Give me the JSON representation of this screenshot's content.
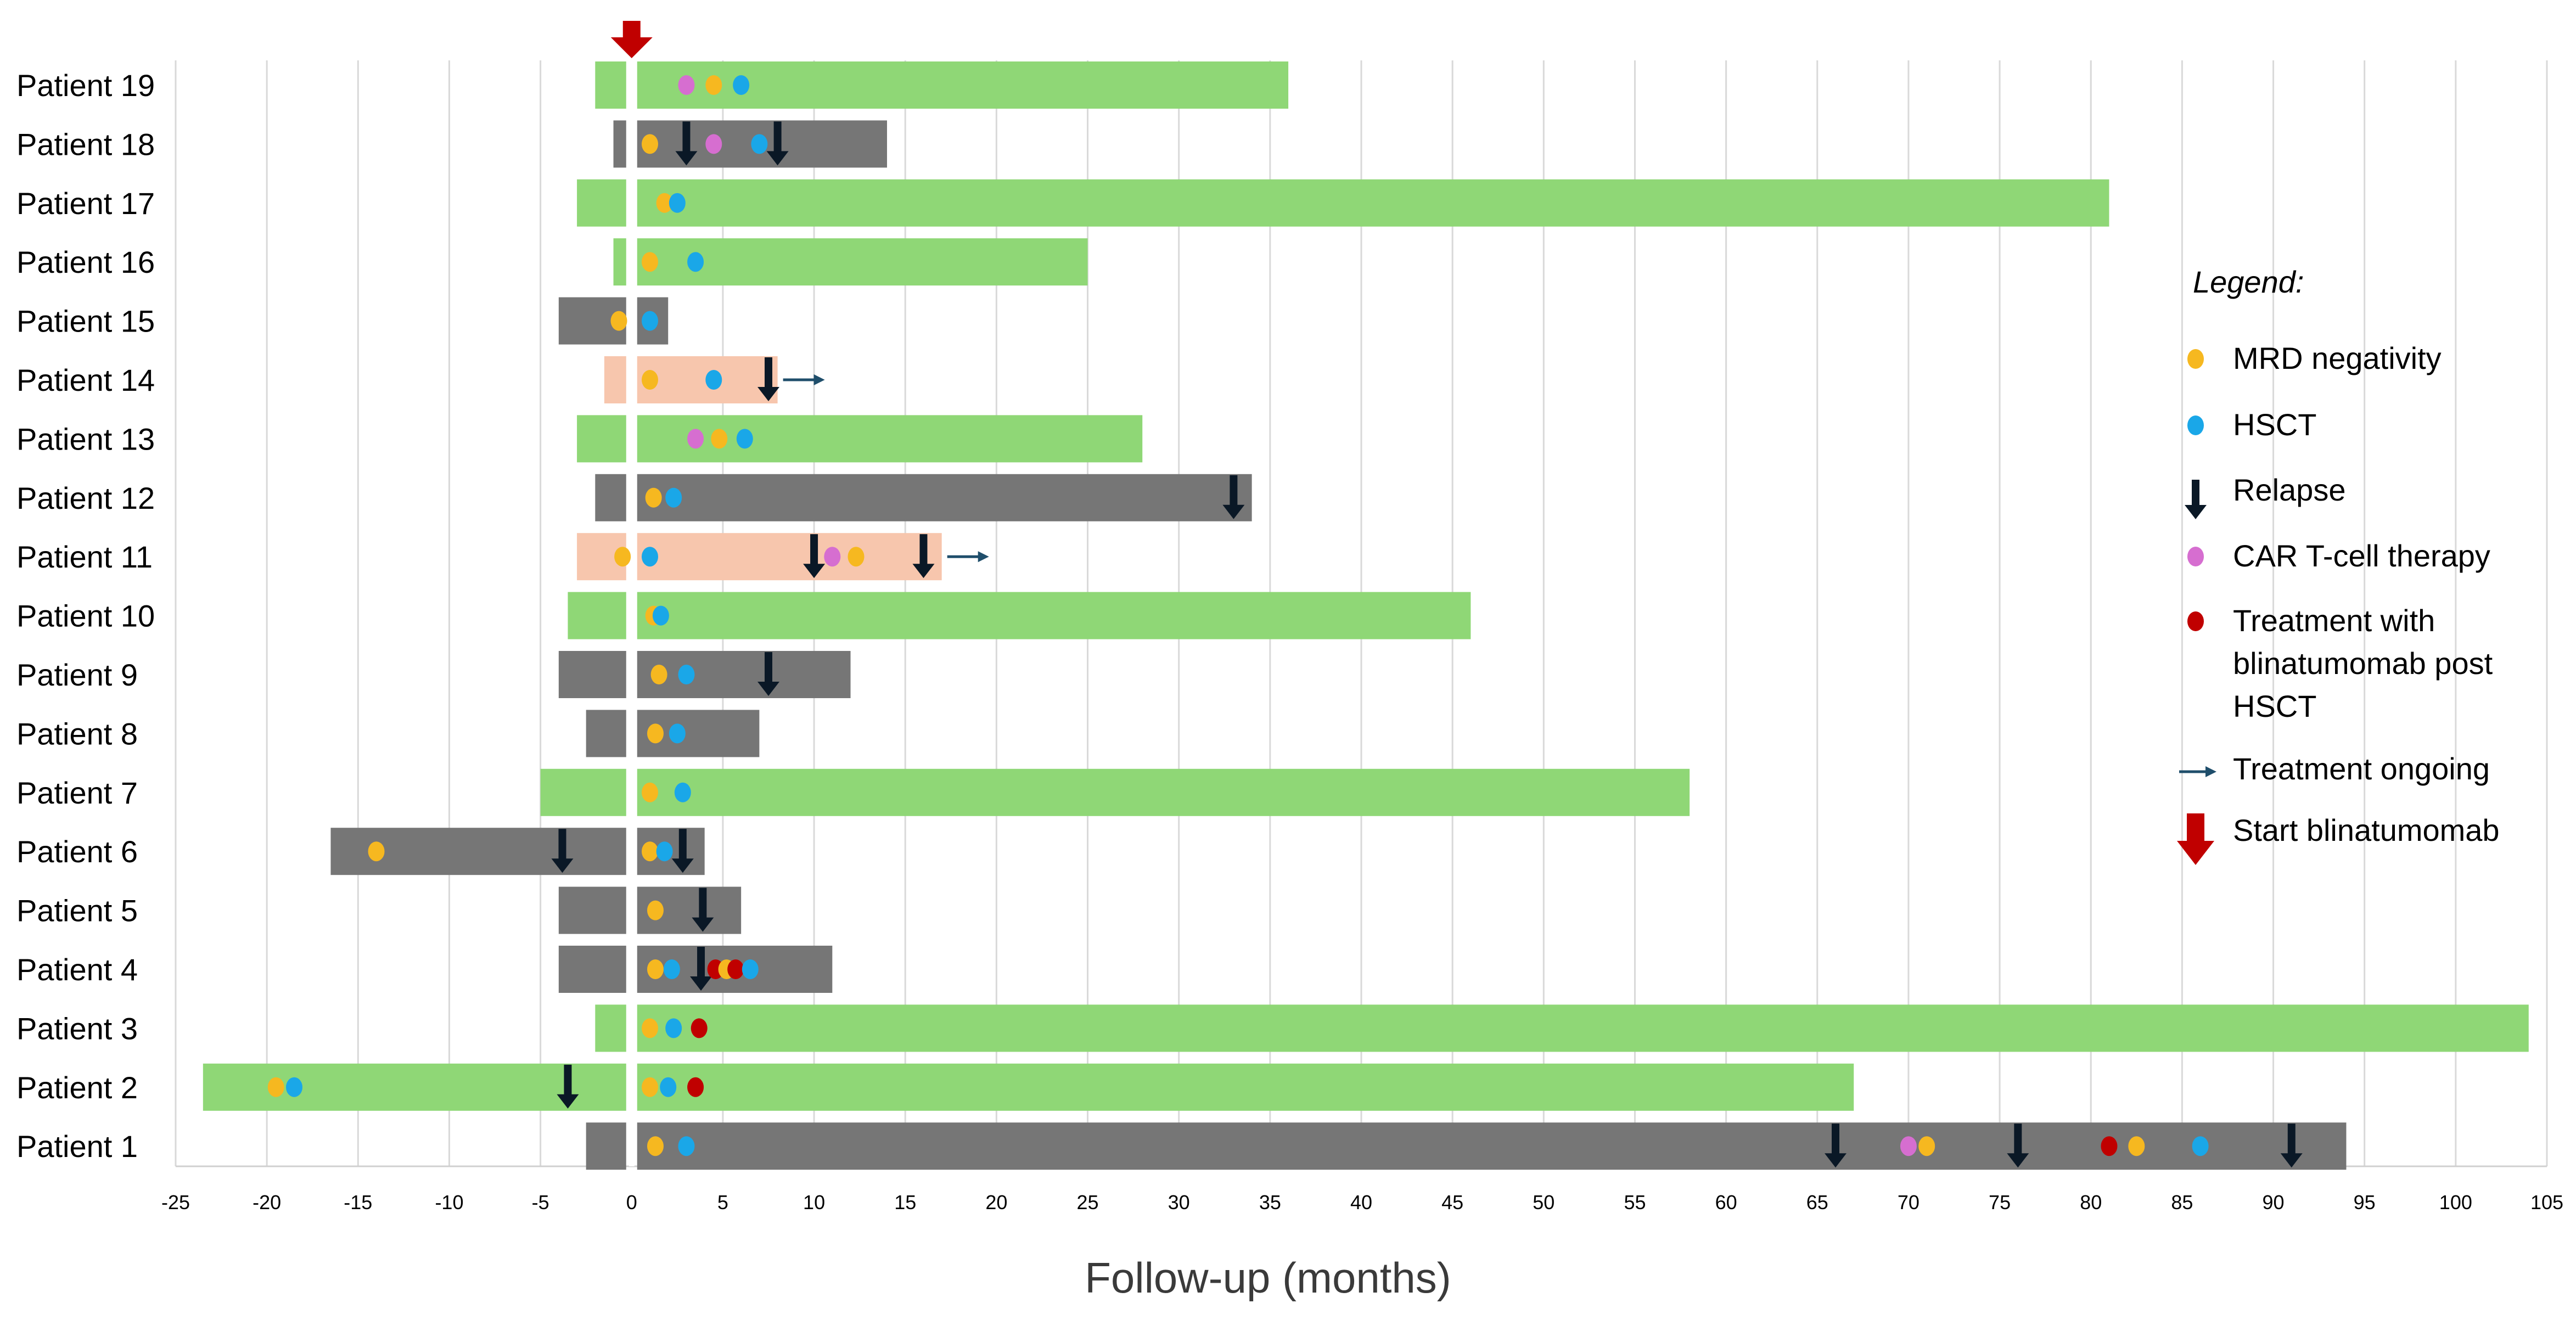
{
  "chart_data": {
    "type": "swimmer",
    "xlabel": "Follow-up (months)",
    "xlim": [
      -25,
      105
    ],
    "xticks": [
      -25,
      -20,
      -15,
      -10,
      -5,
      0,
      5,
      10,
      15,
      20,
      25,
      30,
      35,
      40,
      45,
      50,
      55,
      60,
      65,
      70,
      75,
      80,
      85,
      90,
      95,
      100,
      105
    ],
    "colors": {
      "green": "#8fd776",
      "gray": "#767676",
      "salmon": "#f7c6ad",
      "mrd": "#f6b820",
      "hsct": "#1aa7e8",
      "car": "#d66ed0",
      "blina": "#c00000",
      "relapse": "#0a1826",
      "ongoing": "#1f4e6b",
      "start": "#c00000",
      "grid": "#d9d9d9"
    },
    "patients": [
      {
        "label": "Patient 19",
        "color": "green",
        "start": -2,
        "end": 36,
        "events": [
          {
            "t": 3,
            "e": "car"
          },
          {
            "t": 4.5,
            "e": "mrd"
          },
          {
            "t": 6,
            "e": "hsct"
          }
        ]
      },
      {
        "label": "Patient 18",
        "color": "gray",
        "start": -1,
        "end": 14,
        "events": [
          {
            "t": 1,
            "e": "mrd"
          },
          {
            "t": 3,
            "e": "relapse"
          },
          {
            "t": 4.5,
            "e": "car"
          },
          {
            "t": 7,
            "e": "hsct"
          },
          {
            "t": 8,
            "e": "relapse"
          }
        ]
      },
      {
        "label": "Patient 17",
        "color": "green",
        "start": -3,
        "end": 81,
        "events": [
          {
            "t": 1.8,
            "e": "mrd"
          },
          {
            "t": 2.5,
            "e": "hsct"
          }
        ]
      },
      {
        "label": "Patient 16",
        "color": "green",
        "start": -1,
        "end": 25,
        "events": [
          {
            "t": 1,
            "e": "mrd"
          },
          {
            "t": 3.5,
            "e": "hsct"
          }
        ]
      },
      {
        "label": "Patient 15",
        "color": "gray",
        "start": -4,
        "end": 2,
        "events": [
          {
            "t": -0.7,
            "e": "mrd"
          },
          {
            "t": 1,
            "e": "hsct"
          }
        ]
      },
      {
        "label": "Patient 14",
        "color": "salmon",
        "start": -1.5,
        "end": 8,
        "ongoing": true,
        "events": [
          {
            "t": 1,
            "e": "mrd"
          },
          {
            "t": 4.5,
            "e": "hsct"
          },
          {
            "t": 7.5,
            "e": "relapse"
          }
        ]
      },
      {
        "label": "Patient 13",
        "color": "green",
        "start": -3,
        "end": 28,
        "events": [
          {
            "t": 3.5,
            "e": "car"
          },
          {
            "t": 4.8,
            "e": "mrd"
          },
          {
            "t": 6.2,
            "e": "hsct"
          }
        ]
      },
      {
        "label": "Patient 12",
        "color": "gray",
        "start": -2,
        "end": 34,
        "events": [
          {
            "t": 1.2,
            "e": "mrd"
          },
          {
            "t": 2.3,
            "e": "hsct"
          },
          {
            "t": 33,
            "e": "relapse"
          }
        ]
      },
      {
        "label": "Patient 11",
        "color": "salmon",
        "start": -3,
        "end": 17,
        "ongoing": true,
        "events": [
          {
            "t": -0.5,
            "e": "mrd"
          },
          {
            "t": 1,
            "e": "hsct"
          },
          {
            "t": 10,
            "e": "relapse"
          },
          {
            "t": 11,
            "e": "car"
          },
          {
            "t": 12.3,
            "e": "mrd"
          },
          {
            "t": 16,
            "e": "relapse"
          }
        ]
      },
      {
        "label": "Patient 10",
        "color": "green",
        "start": -3.5,
        "end": 46,
        "events": [
          {
            "t": 1.2,
            "e": "mrd"
          },
          {
            "t": 1.6,
            "e": "hsct"
          }
        ]
      },
      {
        "label": "Patient 9",
        "color": "gray",
        "start": -4,
        "end": 12,
        "events": [
          {
            "t": 1.5,
            "e": "mrd"
          },
          {
            "t": 3,
            "e": "hsct"
          },
          {
            "t": 7.5,
            "e": "relapse"
          }
        ]
      },
      {
        "label": "Patient 8",
        "color": "gray",
        "start": -2.5,
        "end": 7,
        "events": [
          {
            "t": 1.3,
            "e": "mrd"
          },
          {
            "t": 2.5,
            "e": "hsct"
          }
        ]
      },
      {
        "label": "Patient 7",
        "color": "green",
        "start": -5,
        "end": 58,
        "events": [
          {
            "t": 1,
            "e": "mrd"
          },
          {
            "t": 2.8,
            "e": "hsct"
          }
        ]
      },
      {
        "label": "Patient 6",
        "color": "gray",
        "start": -16.5,
        "end": 4,
        "events": [
          {
            "t": -14,
            "e": "mrd"
          },
          {
            "t": -3.8,
            "e": "relapse"
          },
          {
            "t": 1,
            "e": "mrd"
          },
          {
            "t": 1.8,
            "e": "hsct"
          },
          {
            "t": 2.8,
            "e": "relapse"
          }
        ]
      },
      {
        "label": "Patient 5",
        "color": "gray",
        "start": -4,
        "end": 6,
        "events": [
          {
            "t": 1.3,
            "e": "mrd"
          },
          {
            "t": 3.9,
            "e": "relapse"
          }
        ]
      },
      {
        "label": "Patient 4",
        "color": "gray",
        "start": -4,
        "end": 11,
        "events": [
          {
            "t": 1.3,
            "e": "mrd"
          },
          {
            "t": 2.2,
            "e": "hsct"
          },
          {
            "t": 3.8,
            "e": "relapse"
          },
          {
            "t": 4.6,
            "e": "blina"
          },
          {
            "t": 5.2,
            "e": "mrd"
          },
          {
            "t": 5.7,
            "e": "blina"
          },
          {
            "t": 6.5,
            "e": "hsct"
          }
        ]
      },
      {
        "label": "Patient 3",
        "color": "green",
        "start": -2,
        "end": 104,
        "events": [
          {
            "t": 1,
            "e": "mrd"
          },
          {
            "t": 2.3,
            "e": "hsct"
          },
          {
            "t": 3.7,
            "e": "blina"
          }
        ]
      },
      {
        "label": "Patient 2",
        "color": "green",
        "start": -23.5,
        "end": 67,
        "events": [
          {
            "t": -19.5,
            "e": "mrd"
          },
          {
            "t": -18.5,
            "e": "hsct"
          },
          {
            "t": -3.5,
            "e": "relapse"
          },
          {
            "t": 1,
            "e": "mrd"
          },
          {
            "t": 2,
            "e": "hsct"
          },
          {
            "t": 3.5,
            "e": "blina"
          }
        ]
      },
      {
        "label": "Patient 1",
        "color": "gray",
        "start": -2.5,
        "end": 94,
        "events": [
          {
            "t": 1.3,
            "e": "mrd"
          },
          {
            "t": 3,
            "e": "hsct"
          },
          {
            "t": 66,
            "e": "relapse"
          },
          {
            "t": 70,
            "e": "car"
          },
          {
            "t": 71,
            "e": "mrd"
          },
          {
            "t": 76,
            "e": "relapse"
          },
          {
            "t": 81,
            "e": "blina"
          },
          {
            "t": 82.5,
            "e": "mrd"
          },
          {
            "t": 86,
            "e": "hsct"
          },
          {
            "t": 91,
            "e": "relapse"
          }
        ]
      }
    ],
    "legend": {
      "title": "Legend:",
      "items": [
        {
          "key": "mrd",
          "label_lines": [
            "MRD negativity"
          ]
        },
        {
          "key": "hsct",
          "label_lines": [
            "HSCT"
          ]
        },
        {
          "key": "relapse",
          "label_lines": [
            "Relapse"
          ]
        },
        {
          "key": "car",
          "label_lines": [
            "CAR T-cell therapy"
          ]
        },
        {
          "key": "blina",
          "label_lines": [
            "Treatment with",
            "blinatumomab post",
            "HSCT"
          ]
        },
        {
          "key": "ongoing",
          "label_lines": [
            "Treatment ongoing"
          ]
        },
        {
          "key": "start",
          "label_lines": [
            "Start blinatumomab"
          ]
        }
      ]
    }
  }
}
